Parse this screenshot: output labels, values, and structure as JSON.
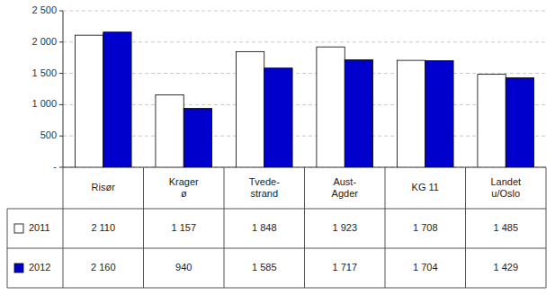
{
  "chart_data": {
    "type": "bar",
    "categories": [
      "Risør",
      "Krager\nø",
      "Tvede-\nstrand",
      "Aust-\nAgder",
      "KG 11",
      "Landet\nu/Oslo"
    ],
    "series": [
      {
        "name": "2011",
        "color": "#ffffff",
        "values": [
          2110,
          1157,
          1848,
          1923,
          1708,
          1485
        ],
        "value_labels": [
          "2 110",
          "1 157",
          "1 848",
          "1 923",
          "1 708",
          "1 485"
        ]
      },
      {
        "name": "2012",
        "color": "#0000cc",
        "values": [
          2160,
          940,
          1585,
          1717,
          1704,
          1429
        ],
        "value_labels": [
          "2 160",
          "940",
          "1 585",
          "1 717",
          "1 704",
          "1 429"
        ]
      }
    ],
    "ylim": [
      0,
      2500
    ],
    "yticks": [
      {
        "value": 0,
        "label": "-"
      },
      500,
      {
        "value": 1000,
        "label": "1 000"
      },
      {
        "value": 1500,
        "label": "1 500"
      },
      {
        "value": 2000,
        "label": "2 000"
      },
      {
        "value": 2500,
        "label": "2 500"
      }
    ],
    "grid": true
  }
}
